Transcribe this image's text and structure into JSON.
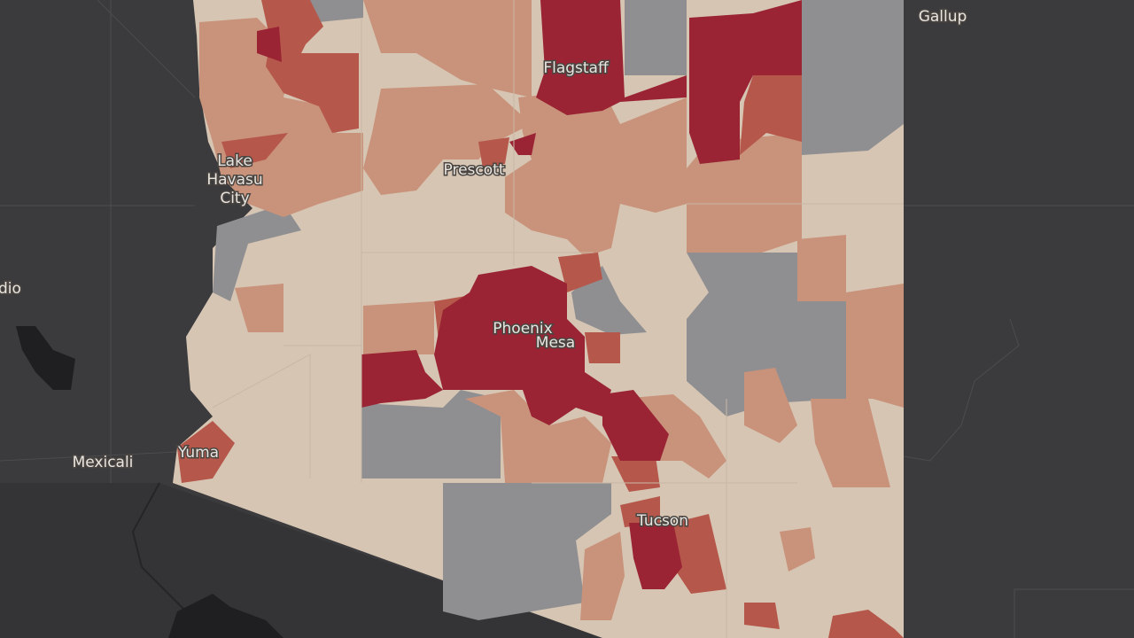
{
  "map": {
    "place_labels": {
      "gallup": "Gallup",
      "flagstaff": "Flagstaff",
      "prescott": "Prescott",
      "lake_havasu_city": [
        "Lake",
        "Havasu",
        "City"
      ],
      "partial_left": "dio",
      "phoenix": "Phoenix",
      "mesa": "Mesa",
      "yuma": "Yuma",
      "mexicali": "Mexicali",
      "tucson": "Tucson"
    }
  }
}
